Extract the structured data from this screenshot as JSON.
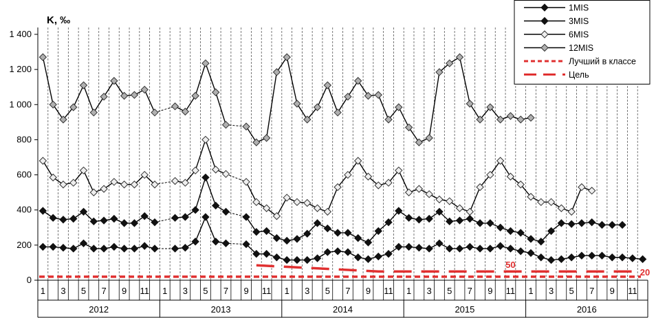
{
  "chart_data": {
    "type": "line",
    "ylabel": "K, ‰",
    "ylim": [
      0,
      1400
    ],
    "yticks": [
      0,
      200,
      400,
      600,
      800,
      1000,
      1200,
      1400
    ],
    "ytick_labels": [
      "0",
      "200",
      "400",
      "600",
      "800",
      "1 000",
      "1 200",
      "1 400"
    ],
    "month_tick_labels": [
      "1",
      "3",
      "5",
      "7",
      "9",
      "11",
      "1",
      "3",
      "5",
      "7",
      "9",
      "11",
      "1",
      "3",
      "5",
      "7",
      "9",
      "11",
      "1",
      "3",
      "5",
      "7",
      "9",
      "11",
      "1",
      "3",
      "5",
      "7",
      "9",
      "11"
    ],
    "years": [
      "2012",
      "2013",
      "2014",
      "2015",
      "2016"
    ],
    "grid": "vertical dashed",
    "legend_position": "top-right",
    "series": [
      {
        "name": "1MIS",
        "color": "#000000",
        "marker": "diamond-filled",
        "style": "solid",
        "values": [
          190,
          190,
          185,
          180,
          210,
          180,
          180,
          190,
          180,
          180,
          195,
          180,
          null,
          180,
          185,
          220,
          360,
          220,
          210,
          null,
          205,
          150,
          150,
          130,
          115,
          115,
          115,
          125,
          160,
          165,
          160,
          130,
          120,
          135,
          150,
          190,
          190,
          185,
          180,
          210,
          180,
          180,
          190,
          180,
          180,
          195,
          180,
          165,
          155,
          130,
          115,
          120,
          130,
          140,
          140,
          140,
          130,
          130,
          125,
          120
        ]
      },
      {
        "name": "3MIS",
        "color": "#000000",
        "marker": "diamond-filled",
        "style": "solid",
        "values": [
          395,
          355,
          345,
          350,
          390,
          335,
          340,
          350,
          325,
          325,
          365,
          330,
          null,
          355,
          360,
          400,
          585,
          425,
          390,
          null,
          360,
          275,
          280,
          240,
          225,
          235,
          265,
          325,
          295,
          270,
          270,
          240,
          215,
          280,
          330,
          395,
          355,
          345,
          350,
          390,
          335,
          340,
          350,
          325,
          325,
          300,
          280,
          270,
          235,
          220,
          280,
          325,
          320,
          325,
          330,
          315,
          315,
          315,
          null,
          null
        ]
      },
      {
        "name": "6MIS",
        "color": "#000000",
        "marker": "diamond-open",
        "style": "solid",
        "values": [
          680,
          585,
          545,
          555,
          625,
          500,
          520,
          560,
          545,
          545,
          600,
          545,
          null,
          565,
          555,
          625,
          800,
          630,
          605,
          null,
          560,
          445,
          410,
          365,
          470,
          445,
          440,
          410,
          390,
          530,
          600,
          680,
          590,
          540,
          555,
          625,
          500,
          520,
          490,
          460,
          450,
          410,
          390,
          530,
          600,
          680,
          590,
          545,
          475,
          445,
          445,
          410,
          390,
          530,
          510,
          null,
          null,
          null,
          null,
          null
        ]
      },
      {
        "name": "12MIS",
        "color": "#000000",
        "marker": "diamond-gray",
        "style": "solid",
        "values": [
          1270,
          1000,
          915,
          985,
          1110,
          955,
          1045,
          1135,
          1050,
          1055,
          1085,
          955,
          null,
          990,
          960,
          1050,
          1235,
          1070,
          885,
          null,
          875,
          785,
          810,
          1185,
          1270,
          1005,
          915,
          985,
          1110,
          955,
          1045,
          1135,
          1050,
          1055,
          915,
          985,
          870,
          785,
          810,
          1185,
          1235,
          1270,
          1005,
          915,
          985,
          915,
          935,
          915,
          925,
          null,
          null,
          null,
          null,
          null,
          null,
          null,
          null,
          null,
          null,
          null
        ]
      },
      {
        "name": "Лучший в классе",
        "color": "#e03030",
        "marker": "none",
        "style": "dashed",
        "level": 20
      },
      {
        "name": "Цель",
        "color": "#e03030",
        "marker": "none",
        "style": "long-dash",
        "level": 50
      }
    ],
    "annotations": [
      "50",
      "20"
    ]
  }
}
